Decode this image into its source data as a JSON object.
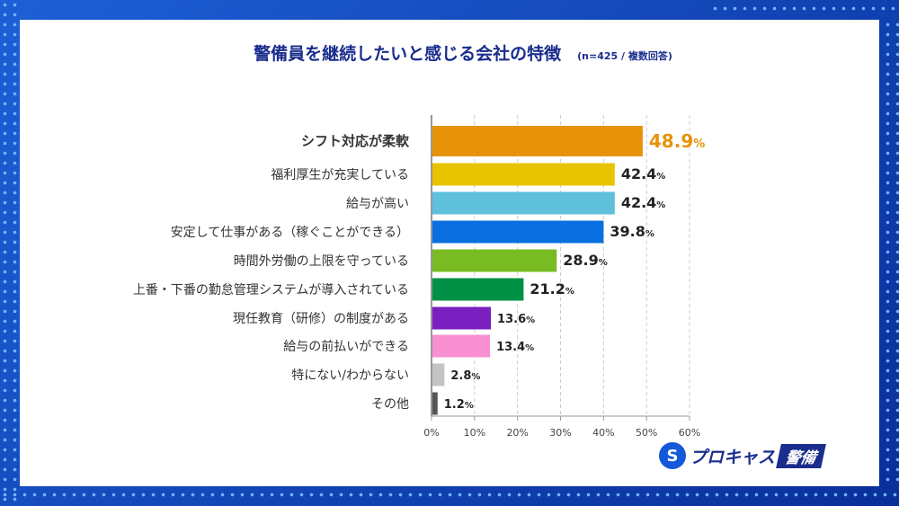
{
  "chart_data": {
    "type": "bar",
    "orientation": "horizontal",
    "title": "警備員を継続したいと感じる会社の特徴",
    "subtitle": "(n=425 / 複数回答)",
    "categories": [
      "シフト対応が柔軟",
      "福利厚生が充実している",
      "給与が高い",
      "安定して仕事がある（稼ぐことができる）",
      "時間外労働の上限を守っている",
      "上番・下番の勤怠管理システムが導入されている",
      "現任教育（研修）の制度がある",
      "給与の前払いができる",
      "特にない/わからない",
      "その他"
    ],
    "values": [
      48.9,
      42.4,
      42.4,
      39.8,
      28.9,
      21.2,
      13.6,
      13.4,
      2.8,
      1.2
    ],
    "colors": [
      "#e8920a",
      "#e8c300",
      "#5fc0dc",
      "#0a6fe0",
      "#78bb22",
      "#009146",
      "#7a1fc0",
      "#f78fd0",
      "#c4c4c4",
      "#555555"
    ],
    "xlim": [
      0,
      60
    ],
    "ticks": [
      "0%",
      "10%",
      "20%",
      "30%",
      "40%",
      "50%",
      "60%"
    ],
    "unit": "%",
    "grid": true,
    "highlight_color": "#e8920a"
  },
  "logo": {
    "text": "プロキャス",
    "tag": "警備"
  }
}
